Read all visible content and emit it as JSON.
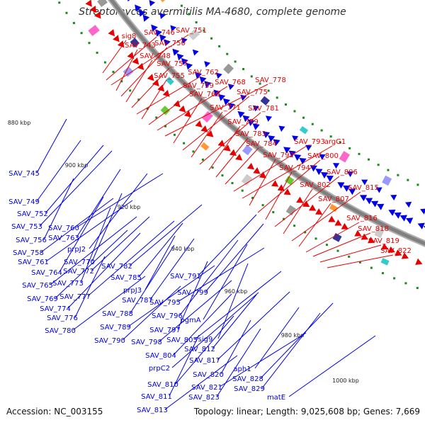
{
  "title": "Streptomyces avermitilis MA-4680, complete genome",
  "accession": "Accession: NC_003155",
  "summary": "Topology: linear; Length: 9,025,608 bp; Genes: 7,669",
  "scale_labels": [
    "880 kbp",
    "900 kbp",
    "920 kbp",
    "940 kbp",
    "960 kbp",
    "980 kbp",
    "1000 kbp"
  ],
  "colors": {
    "forward_genes": "#e60000",
    "reverse_genes": "#0000e6",
    "backbone": "#808080",
    "gc_ticks": "#1a8a1a"
  },
  "forward_labels": [
    "sig8",
    "SAV_746",
    "SAV_751",
    "SAV_743",
    "SAV_750",
    "SAV_748",
    "SAV_757",
    "SAV_762",
    "SAV_755",
    "SAV_759",
    "SAV_768",
    "SAV_778",
    "SAV_766",
    "SAV_775",
    "SAV_771",
    "SAV_781",
    "SAV_779",
    "SAV_783",
    "SAV_784",
    "SAV_793",
    "argG1",
    "SAV_792",
    "SAV_800",
    "SAV_794",
    "SAV_806",
    "SAV_802",
    "SAV_815",
    "SAV_807",
    "SAV_816",
    "SAV_818",
    "SAV_819",
    "SAV_822"
  ],
  "reverse_labels": [
    "SAV_745",
    "SAV_749",
    "SAV_752",
    "SAV_753",
    "SAV_760",
    "SAV_756",
    "SAV_763",
    "prpJ2",
    "SAV_758",
    "SAV_761",
    "SAV_770",
    "SAV_764",
    "SAV_772",
    "SAV_782",
    "SAV_765",
    "SAV_773",
    "SAV_785",
    "SAV_791",
    "SAV_769",
    "SAV_777",
    "prpJ3",
    "SAV_787",
    "SAV_799",
    "SAV_774",
    "SAV_795",
    "SAV_776",
    "SAV_788",
    "SAV_796",
    "SAV_780",
    "SAV_789",
    "SAV_797",
    "pgmA",
    "SAV_790",
    "SAV_798",
    "SAV_805",
    "sig9",
    "SAV_812",
    "SAV_804",
    "SAV_817",
    "prpC2",
    "SAV_820",
    "aph1",
    "SAV_810",
    "SAV_828",
    "SAV_821",
    "SAV_811",
    "SAV_823",
    "SAV_829",
    "SAV_813",
    "matE"
  ]
}
